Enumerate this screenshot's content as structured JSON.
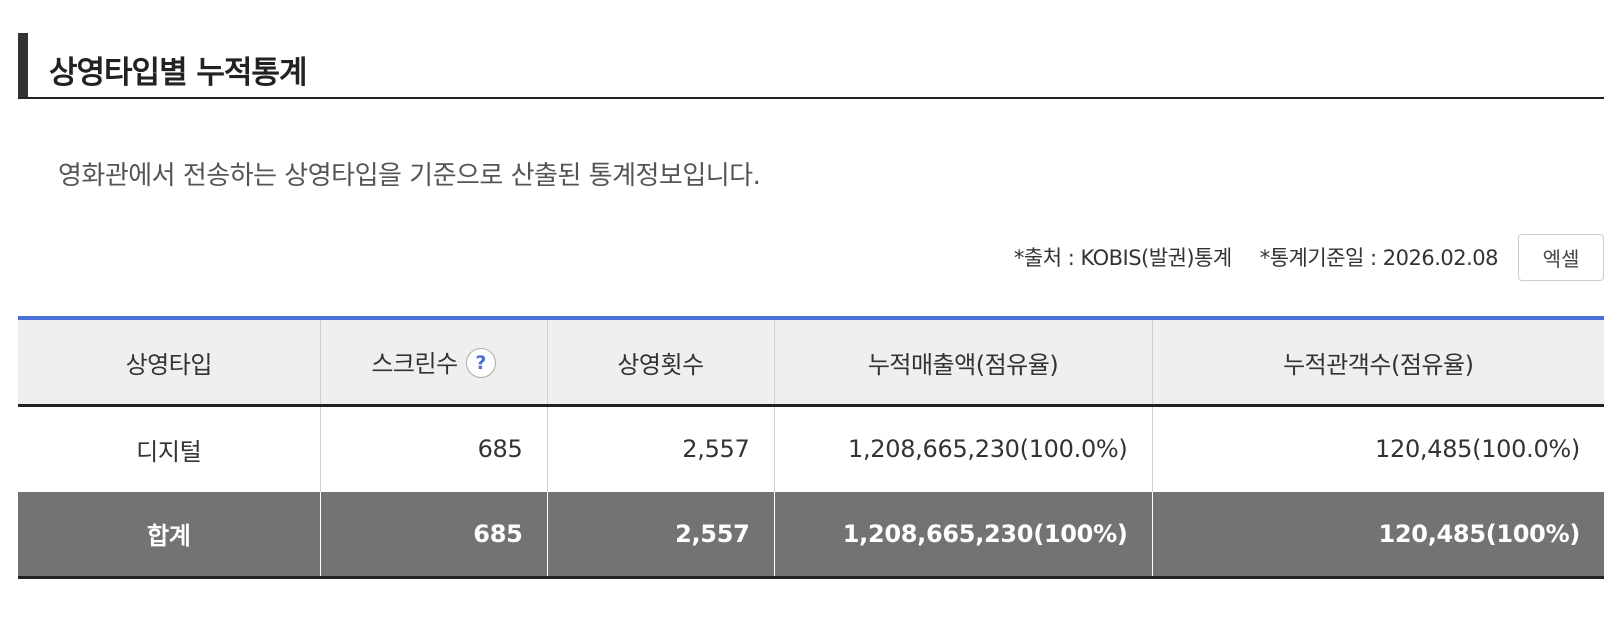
{
  "section": {
    "title": "상영타입별 누적통계",
    "description": "영화관에서 전송하는 상영타입을 기준으로 산출된 통계정보입니다."
  },
  "meta": {
    "source": "*출처 : KOBIS(발권)통계",
    "base_date": "*통계기준일 : 2026.02.08",
    "excel_label": "엑셀"
  },
  "colors": {
    "table_top_border": "#4a6fd6",
    "total_row_bg": "#737373",
    "header_bg": "#efefef"
  },
  "table": {
    "headers": {
      "type": "상영타입",
      "screens": "스크린수",
      "screenings": "상영횟수",
      "revenue": "누적매출액(점유율)",
      "audience": "누적관객수(점유율)"
    },
    "help_icon": "question-circle-icon",
    "help_glyph": "?",
    "rows": [
      {
        "type": "디지털",
        "screens": "685",
        "screenings": "2,557",
        "revenue": "1,208,665,230(100.0%)",
        "audience": "120,485(100.0%)"
      }
    ],
    "total": {
      "type": "합계",
      "screens": "685",
      "screenings": "2,557",
      "revenue": "1,208,665,230(100%)",
      "audience": "120,485(100%)"
    }
  }
}
